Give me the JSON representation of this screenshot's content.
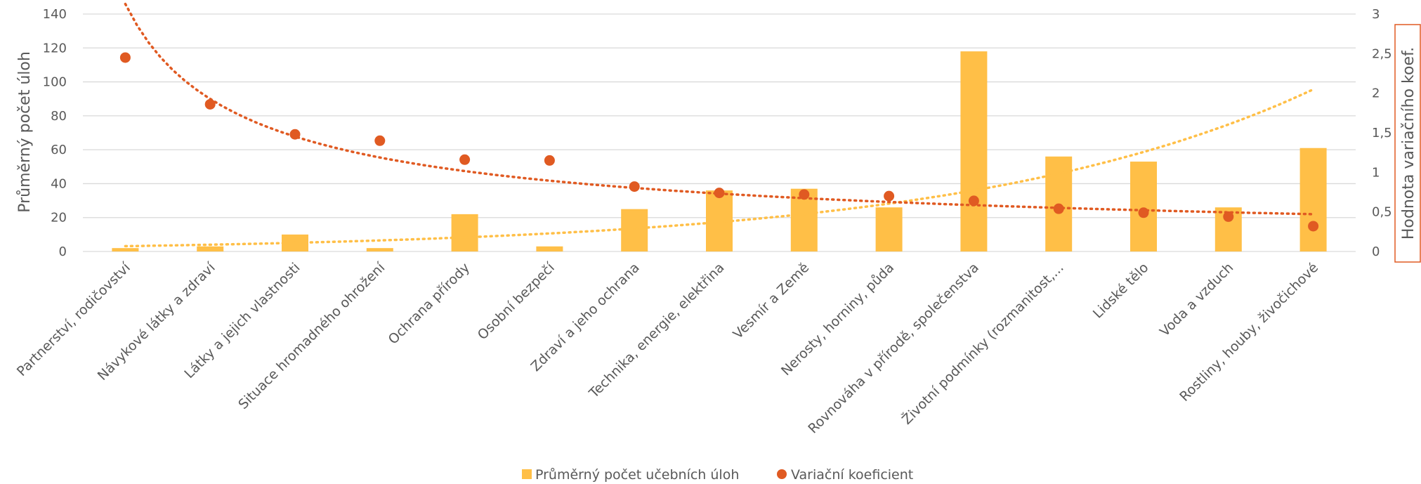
{
  "chart_data": {
    "type": "bar",
    "categories": [
      "Partnerství, rodičovství",
      "Návykové látky a zdraví",
      "Látky a jejich vlastnosti",
      "Situace hromadného ohrožení",
      "Ochrana přírody",
      "Osobní bezpečí",
      "Zdraví a jeho ochrana",
      "Technika, energie, elektřina",
      "Vesmír a Země",
      "Nerosty, horniny, půda",
      "Rovnováha v přírodě, společenstva",
      "Životní podmínky (rozmanitost,...",
      "Lidské tělo",
      "Voda a vzduch",
      "Rostliny, houby, živočichové"
    ],
    "series": [
      {
        "name": "Průměrný počet učebních úloh",
        "type": "bar",
        "axis": "left",
        "color": "#ffbf47",
        "values": [
          2,
          3,
          10,
          2,
          22,
          3,
          25,
          36,
          37,
          26,
          118,
          56,
          53,
          26,
          61
        ]
      },
      {
        "name": "Variační koeficient",
        "type": "scatter",
        "axis": "right",
        "color": "#e05a22",
        "values": [
          2.45,
          1.86,
          1.48,
          1.4,
          1.16,
          1.15,
          0.82,
          0.74,
          0.72,
          0.7,
          0.64,
          0.54,
          0.49,
          0.44,
          0.32
        ]
      }
    ],
    "trendlines": [
      {
        "series": "Průměrný počet učebních úloh",
        "kind": "exponential",
        "color": "#ffbf47"
      },
      {
        "series": "Variační koeficient",
        "kind": "power",
        "color": "#e05a22"
      }
    ],
    "yaxis_left": {
      "label": "Průměrný počet úloh",
      "range": [
        0,
        140
      ],
      "ticks": [
        "0",
        "20",
        "40",
        "60",
        "80",
        "100",
        "120",
        "140"
      ]
    },
    "yaxis_right": {
      "label": "Hodnota variačního koef.",
      "range": [
        0,
        3
      ],
      "ticks": [
        "0",
        "0,5",
        "1",
        "1,5",
        "2",
        "2,5",
        "3"
      ]
    },
    "grid": true,
    "legend": {
      "position": "bottom",
      "items": [
        "Průměrný počet učebních úloh",
        "Variační koeficient"
      ]
    }
  }
}
